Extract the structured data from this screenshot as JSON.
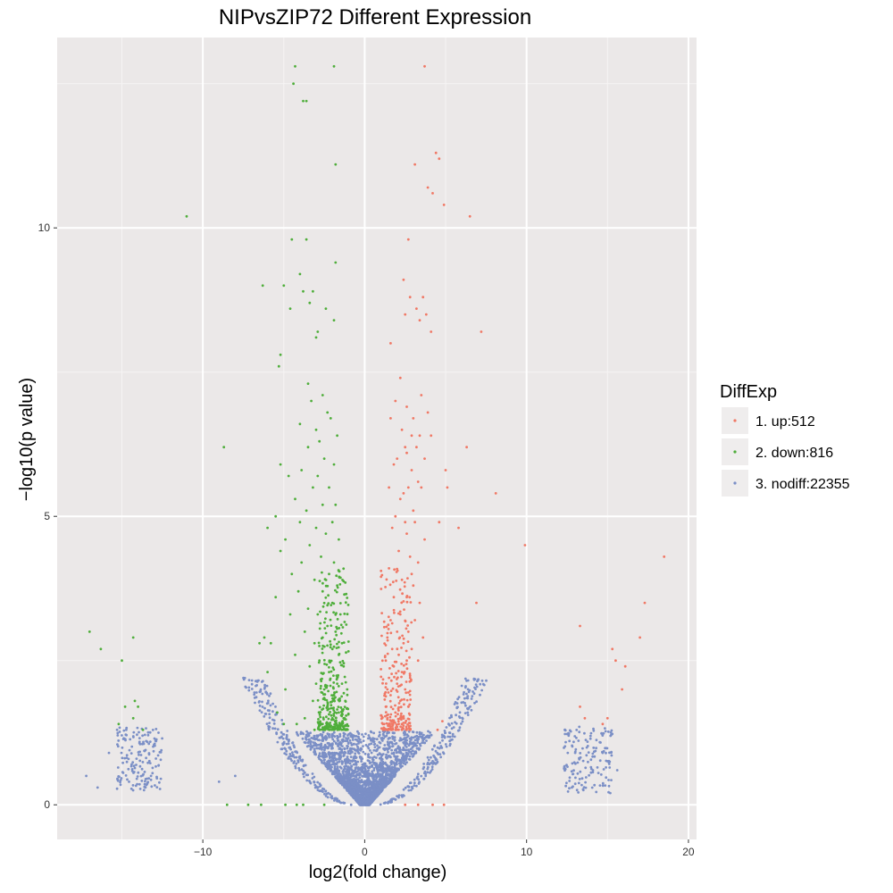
{
  "chart_data": {
    "type": "scatter",
    "title": "NIPvsZIP72 Different Expression",
    "xlabel": "log2(fold change)",
    "ylabel": "−log10(p value)",
    "xlim": [
      -19,
      20.5
    ],
    "ylim": [
      -0.6,
      13.3
    ],
    "x_ticks": [
      -10,
      0,
      10,
      20
    ],
    "x_tick_labels": [
      "−10",
      "0",
      "10",
      "20"
    ],
    "y_ticks": [
      0,
      5,
      10
    ],
    "y_tick_labels": [
      "0",
      "5",
      "10"
    ],
    "grid": true,
    "panel_background": "#ebe8e8",
    "legend": {
      "title": "DiffExp",
      "position": "right",
      "entries": [
        {
          "label": "1. up:512",
          "color": "#f07865"
        },
        {
          "label": "2. down:816",
          "color": "#4fae3b"
        },
        {
          "label": "3. nodiff:22355",
          "color": "#7b8fc6"
        }
      ]
    },
    "series": [
      {
        "name": "1. up:512",
        "color": "#f07865",
        "points": [
          [
            3.7,
            12.8
          ],
          [
            4.4,
            11.3
          ],
          [
            3.1,
            11.1
          ],
          [
            4.6,
            11.2
          ],
          [
            3.9,
            10.7
          ],
          [
            4.2,
            10.6
          ],
          [
            4.9,
            10.4
          ],
          [
            6.5,
            10.2
          ],
          [
            2.7,
            9.8
          ],
          [
            2.4,
            9.1
          ],
          [
            2.8,
            8.8
          ],
          [
            3.6,
            8.8
          ],
          [
            3.2,
            8.6
          ],
          [
            3.8,
            8.5
          ],
          [
            3.4,
            8.4
          ],
          [
            4.1,
            8.2
          ],
          [
            2.5,
            8.5
          ],
          [
            7.2,
            8.2
          ],
          [
            1.6,
            8.0
          ],
          [
            2.2,
            7.4
          ],
          [
            3.5,
            7.1
          ],
          [
            1.9,
            7.0
          ],
          [
            2.6,
            6.9
          ],
          [
            3.9,
            6.8
          ],
          [
            3.0,
            6.7
          ],
          [
            1.6,
            6.7
          ],
          [
            2.3,
            6.5
          ],
          [
            2.9,
            6.4
          ],
          [
            3.4,
            6.4
          ],
          [
            4.1,
            6.4
          ],
          [
            3.2,
            6.2
          ],
          [
            2.5,
            6.2
          ],
          [
            2.6,
            6.1
          ],
          [
            2.0,
            6.0
          ],
          [
            3.7,
            6.0
          ],
          [
            1.8,
            5.9
          ],
          [
            2.9,
            5.8
          ],
          [
            3.3,
            5.6
          ],
          [
            2.7,
            5.5
          ],
          [
            1.5,
            5.5
          ],
          [
            3.5,
            5.5
          ],
          [
            2.4,
            5.4
          ],
          [
            5.0,
            5.8
          ],
          [
            6.3,
            6.2
          ],
          [
            5.1,
            5.5
          ],
          [
            8.1,
            5.4
          ],
          [
            2.2,
            5.3
          ],
          [
            3.0,
            5.1
          ],
          [
            1.9,
            5.0
          ],
          [
            2.5,
            4.9
          ],
          [
            3.1,
            4.9
          ],
          [
            4.6,
            4.9
          ],
          [
            1.7,
            4.8
          ],
          [
            5.8,
            4.8
          ],
          [
            2.6,
            4.7
          ],
          [
            3.7,
            4.6
          ],
          [
            9.9,
            4.5
          ],
          [
            18.5,
            4.3
          ],
          [
            2.1,
            4.4
          ],
          [
            2.8,
            4.3
          ],
          [
            3.3,
            4.2
          ],
          [
            1.5,
            4.1
          ],
          [
            2.9,
            4.0
          ],
          [
            2.3,
            3.9
          ],
          [
            3.0,
            3.8
          ],
          [
            1.8,
            3.6
          ],
          [
            2.6,
            3.6
          ],
          [
            3.4,
            3.5
          ],
          [
            6.9,
            3.5
          ],
          [
            17.3,
            3.5
          ],
          [
            2.2,
            3.3
          ],
          [
            1.6,
            3.2
          ],
          [
            3.1,
            3.2
          ],
          [
            13.3,
            3.1
          ],
          [
            2.0,
            3.0
          ],
          [
            2.7,
            3.0
          ],
          [
            1.4,
            2.9
          ],
          [
            3.6,
            2.9
          ],
          [
            17.0,
            2.9
          ],
          [
            2.4,
            2.8
          ],
          [
            1.7,
            2.7
          ],
          [
            2.9,
            2.7
          ],
          [
            15.3,
            2.7
          ],
          [
            2.1,
            2.6
          ],
          [
            1.3,
            2.5
          ],
          [
            2.6,
            2.5
          ],
          [
            3.3,
            2.5
          ],
          [
            15.5,
            2.5
          ],
          [
            1.8,
            2.4
          ],
          [
            2.3,
            2.3
          ],
          [
            1.5,
            2.2
          ],
          [
            16.1,
            2.4
          ],
          [
            2.8,
            2.2
          ],
          [
            2.0,
            2.1
          ],
          [
            1.4,
            2.0
          ],
          [
            2.5,
            2.0
          ],
          [
            15.9,
            2.0
          ],
          [
            1.6,
            1.9
          ],
          [
            2.2,
            1.8
          ],
          [
            1.3,
            1.7
          ],
          [
            2.7,
            1.7
          ],
          [
            13.3,
            1.7
          ],
          [
            1.9,
            1.6
          ],
          [
            1.4,
            1.5
          ],
          [
            2.4,
            1.5
          ],
          [
            13.6,
            1.5
          ],
          [
            1.2,
            1.4
          ],
          [
            1.7,
            1.4
          ],
          [
            2.1,
            1.4
          ],
          [
            15.0,
            1.5
          ],
          [
            1.5,
            1.3
          ],
          [
            1.9,
            1.3
          ],
          [
            2.3,
            1.3
          ],
          [
            14.7,
            1.4
          ],
          [
            1.2,
            1.3
          ],
          [
            2.6,
            1.3
          ],
          [
            1.6,
            1.35
          ],
          [
            2.0,
            1.35
          ],
          [
            4.8,
            1.45
          ],
          [
            4.5,
            1.3
          ],
          [
            2.5,
            0.0
          ],
          [
            3.3,
            0.0
          ],
          [
            4.2,
            0.0
          ],
          [
            4.9,
            0.0
          ]
        ]
      },
      {
        "name": "2. down:816",
        "color": "#4fae3b",
        "points": [
          [
            -4.3,
            12.8
          ],
          [
            -1.9,
            12.8
          ],
          [
            -4.4,
            12.5
          ],
          [
            -3.8,
            12.2
          ],
          [
            -3.6,
            12.2
          ],
          [
            -1.8,
            11.1
          ],
          [
            -11.0,
            10.2
          ],
          [
            -4.5,
            9.8
          ],
          [
            -3.6,
            9.8
          ],
          [
            -1.8,
            9.4
          ],
          [
            -4.0,
            9.2
          ],
          [
            -5.0,
            9.0
          ],
          [
            -6.3,
            9.0
          ],
          [
            -3.8,
            8.9
          ],
          [
            -3.4,
            8.7
          ],
          [
            -4.6,
            8.6
          ],
          [
            -2.4,
            8.6
          ],
          [
            -3.2,
            8.9
          ],
          [
            -1.9,
            8.4
          ],
          [
            -2.9,
            8.2
          ],
          [
            -3.0,
            8.1
          ],
          [
            -5.2,
            7.8
          ],
          [
            -5.3,
            7.6
          ],
          [
            -3.5,
            7.3
          ],
          [
            -2.6,
            7.1
          ],
          [
            -3.3,
            7.0
          ],
          [
            -2.3,
            6.8
          ],
          [
            -4.0,
            6.6
          ],
          [
            -2.1,
            6.7
          ],
          [
            -3.0,
            6.5
          ],
          [
            -1.7,
            6.4
          ],
          [
            -2.8,
            6.3
          ],
          [
            -8.7,
            6.2
          ],
          [
            -3.5,
            6.2
          ],
          [
            -2.5,
            6.0
          ],
          [
            -5.2,
            5.9
          ],
          [
            -3.9,
            5.8
          ],
          [
            -1.9,
            5.9
          ],
          [
            -2.9,
            5.7
          ],
          [
            -4.7,
            5.7
          ],
          [
            -3.2,
            5.5
          ],
          [
            -2.2,
            5.5
          ],
          [
            -4.3,
            5.3
          ],
          [
            -2.6,
            5.2
          ],
          [
            -1.8,
            5.2
          ],
          [
            -3.6,
            5.1
          ],
          [
            -5.5,
            5.0
          ],
          [
            -2.0,
            4.9
          ],
          [
            -4.0,
            4.9
          ],
          [
            -3.0,
            4.8
          ],
          [
            -6.0,
            4.8
          ],
          [
            -2.4,
            4.7
          ],
          [
            -4.9,
            4.6
          ],
          [
            -1.6,
            4.6
          ],
          [
            -3.4,
            4.5
          ],
          [
            -5.2,
            4.4
          ],
          [
            -2.7,
            4.3
          ],
          [
            -1.9,
            4.2
          ],
          [
            -3.9,
            4.2
          ],
          [
            -2.2,
            4.0
          ],
          [
            -4.5,
            4.0
          ],
          [
            -3.1,
            3.9
          ],
          [
            -1.7,
            3.8
          ],
          [
            -2.6,
            3.7
          ],
          [
            -4.1,
            3.7
          ],
          [
            -5.5,
            3.6
          ],
          [
            -2.0,
            3.5
          ],
          [
            -3.5,
            3.4
          ],
          [
            -1.5,
            3.3
          ],
          [
            -2.9,
            3.3
          ],
          [
            -4.6,
            3.3
          ],
          [
            -2.3,
            3.1
          ],
          [
            -1.8,
            3.0
          ],
          [
            -3.7,
            3.0
          ],
          [
            -6.2,
            2.9
          ],
          [
            -2.6,
            2.9
          ],
          [
            -1.4,
            2.8
          ],
          [
            -3.1,
            2.8
          ],
          [
            -5.8,
            2.8
          ],
          [
            -2.0,
            2.7
          ],
          [
            -4.3,
            2.6
          ],
          [
            -1.6,
            2.6
          ],
          [
            -2.8,
            2.5
          ],
          [
            -1.3,
            2.4
          ],
          [
            -3.4,
            2.4
          ],
          [
            -6.0,
            2.3
          ],
          [
            -2.2,
            2.3
          ],
          [
            -1.7,
            2.2
          ],
          [
            -3.0,
            2.1
          ],
          [
            -1.4,
            2.1
          ],
          [
            -2.5,
            2.0
          ],
          [
            -4.9,
            2.0
          ],
          [
            -1.9,
            1.9
          ],
          [
            -1.2,
            1.8
          ],
          [
            -3.2,
            1.8
          ],
          [
            -2.3,
            1.7
          ],
          [
            -1.6,
            1.6
          ],
          [
            -2.8,
            1.6
          ],
          [
            -5.4,
            1.6
          ],
          [
            -1.3,
            1.5
          ],
          [
            -2.0,
            1.5
          ],
          [
            -3.7,
            1.5
          ],
          [
            -1.8,
            1.4
          ],
          [
            -2.6,
            1.4
          ],
          [
            -1.2,
            1.3
          ],
          [
            -3.1,
            1.3
          ],
          [
            -1.5,
            1.35
          ],
          [
            -2.2,
            1.35
          ],
          [
            -4.2,
            1.4
          ],
          [
            -17.0,
            3.0
          ],
          [
            -16.3,
            2.7
          ],
          [
            -14.3,
            2.9
          ],
          [
            -15.0,
            2.5
          ],
          [
            -14.2,
            1.8
          ],
          [
            -14.8,
            1.7
          ],
          [
            -14.0,
            1.7
          ],
          [
            -15.2,
            1.4
          ],
          [
            -13.7,
            1.3
          ],
          [
            -14.3,
            1.5
          ],
          [
            -6.5,
            2.8
          ],
          [
            -7.2,
            0.0
          ],
          [
            -8.5,
            0.0
          ],
          [
            -6.4,
            0.0
          ],
          [
            -4.9,
            0.0
          ],
          [
            -4.2,
            0.0
          ],
          [
            -3.8,
            0.0
          ],
          [
            -2.5,
            0.0
          ],
          [
            -5.0,
            1.4
          ]
        ]
      },
      {
        "name": "3. nodiff:22355",
        "color": "#7b8fc6",
        "generator": "dense funnel around x=0 with ~1.3 cutoff plus outlier clusters near x=±15",
        "points": [
          [
            -17.2,
            0.5
          ],
          [
            -16.5,
            0.3
          ],
          [
            -8.0,
            0.5
          ],
          [
            -9.0,
            0.4
          ],
          [
            -15.8,
            0.9
          ],
          [
            -15.3,
            1.3
          ],
          [
            -14.4,
            0.7
          ],
          [
            -13.2,
            0.5
          ],
          [
            13.0,
            0.9
          ],
          [
            14.1,
            0.6
          ],
          [
            15.6,
            0.6
          ],
          [
            12.8,
            0.3
          ],
          [
            14.7,
            0.9
          ]
        ]
      }
    ]
  }
}
